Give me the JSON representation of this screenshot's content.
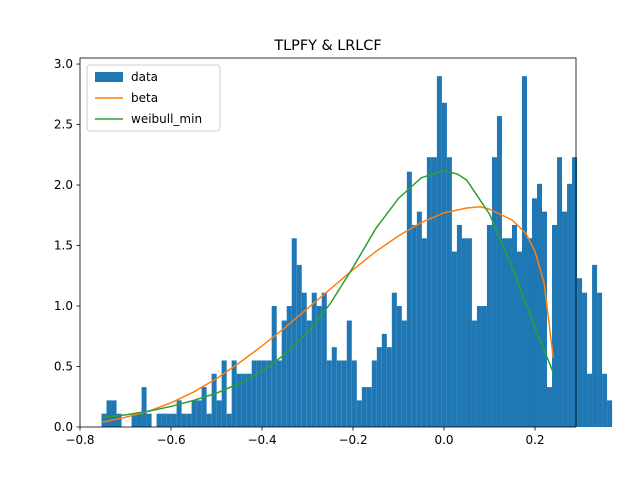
{
  "chart_data": {
    "type": "bar",
    "title": "TLPFY & LRLCF",
    "xlabel": "",
    "ylabel": "",
    "xlim": [
      -0.8,
      0.29
    ],
    "ylim": [
      0.0,
      3.05
    ],
    "xticks": [
      "−0.8",
      "−0.6",
      "−0.4",
      "−0.2",
      "0.0",
      "0.2"
    ],
    "xtick_values": [
      -0.8,
      -0.6,
      -0.4,
      -0.2,
      0.0,
      0.2
    ],
    "yticks": [
      "0.0",
      "0.5",
      "1.0",
      "1.5",
      "2.0",
      "2.5",
      "3.0"
    ],
    "ytick_values": [
      0.0,
      0.5,
      1.0,
      1.5,
      2.0,
      2.5,
      3.0
    ],
    "grid": false,
    "legend_position": "top-left",
    "histogram": {
      "name": "data",
      "color": "#1f77b4",
      "bin_start": -0.7527,
      "bin_width": 0.011,
      "heights": [
        0.11,
        0.22,
        0.22,
        0.11,
        0.0,
        0.0,
        0.11,
        0.11,
        0.33,
        0.11,
        0.0,
        0.11,
        0.11,
        0.11,
        0.11,
        0.22,
        0.11,
        0.11,
        0.22,
        0.22,
        0.33,
        0.11,
        0.44,
        0.22,
        0.55,
        0.11,
        0.55,
        0.44,
        0.44,
        0.44,
        0.55,
        0.55,
        0.55,
        0.55,
        1.0,
        0.55,
        0.88,
        1.0,
        1.56,
        1.34,
        1.11,
        0.88,
        1.11,
        1.0,
        1.11,
        0.55,
        0.66,
        0.55,
        0.55,
        0.88,
        0.55,
        0.22,
        0.33,
        0.33,
        0.55,
        0.66,
        0.77,
        0.66,
        1.11,
        1.0,
        0.88,
        2.11,
        1.67,
        1.78,
        1.56,
        2.23,
        2.23,
        2.9,
        2.68,
        2.23,
        1.45,
        1.67,
        1.56,
        1.56,
        0.88,
        1.0,
        1.0,
        1.67,
        2.23,
        2.57,
        1.56,
        1.56,
        1.67,
        1.45,
        2.9,
        1.56,
        1.89,
        2.01,
        1.78,
        0.33,
        1.67,
        2.23,
        1.78,
        2.01,
        2.23,
        1.23,
        1.11,
        0.44,
        1.34,
        1.11,
        0.44,
        0.22,
        0.0,
        0.0
      ]
    },
    "series": [
      {
        "name": "beta",
        "color": "#ff7f0e",
        "x": [
          -0.75,
          -0.7,
          -0.65,
          -0.6,
          -0.55,
          -0.5,
          -0.45,
          -0.4,
          -0.35,
          -0.3,
          -0.25,
          -0.2,
          -0.15,
          -0.1,
          -0.05,
          0.0,
          0.05,
          0.08,
          0.1,
          0.15,
          0.18,
          0.2,
          0.22,
          0.24
        ],
        "y": [
          0.04,
          0.08,
          0.13,
          0.2,
          0.29,
          0.4,
          0.53,
          0.67,
          0.82,
          0.98,
          1.14,
          1.3,
          1.45,
          1.58,
          1.69,
          1.77,
          1.81,
          1.82,
          1.8,
          1.71,
          1.6,
          1.45,
          1.19,
          0.57
        ]
      },
      {
        "name": "weibull_min",
        "color": "#2ca02c",
        "x": [
          -0.75,
          -0.7,
          -0.65,
          -0.6,
          -0.55,
          -0.5,
          -0.45,
          -0.4,
          -0.35,
          -0.3,
          -0.25,
          -0.2,
          -0.15,
          -0.1,
          -0.05,
          0.0,
          0.03,
          0.05,
          0.1,
          0.15,
          0.2,
          0.24
        ],
        "y": [
          0.08,
          0.1,
          0.13,
          0.17,
          0.22,
          0.28,
          0.36,
          0.46,
          0.6,
          0.78,
          1.02,
          1.32,
          1.64,
          1.89,
          2.06,
          2.12,
          2.09,
          2.04,
          1.76,
          1.32,
          0.82,
          0.45
        ]
      }
    ],
    "legend": [
      "data",
      "beta",
      "weibull_min"
    ]
  }
}
